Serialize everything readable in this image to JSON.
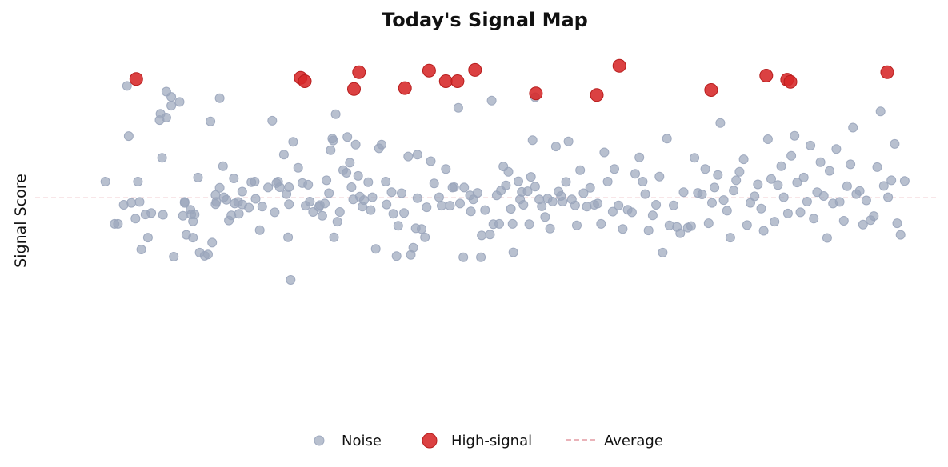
{
  "chart_data": {
    "type": "scatter",
    "title": "Today's Signal Map",
    "xlabel": "",
    "ylabel": "Signal Score",
    "xlim": [
      0,
      100
    ],
    "ylim": [
      0,
      100
    ],
    "grid": false,
    "legend_position": "bottom-center",
    "legend": [
      "Noise",
      "High-signal",
      "Average"
    ],
    "colors": {
      "noise": "#9aa5bb",
      "signal": "#d62728",
      "average": "#e39aa2"
    },
    "average": 56.8,
    "series": [
      {
        "name": "Noise",
        "points": [
          [
            4.0,
            62.0
          ],
          [
            5.1,
            48.5
          ],
          [
            5.5,
            48.5
          ],
          [
            6.2,
            54.6
          ],
          [
            6.6,
            92.5
          ],
          [
            6.8,
            76.5
          ],
          [
            7.1,
            55.2
          ],
          [
            7.6,
            50.2
          ],
          [
            7.9,
            62.0
          ],
          [
            8.1,
            55.5
          ],
          [
            8.3,
            40.3
          ],
          [
            8.8,
            51.5
          ],
          [
            9.1,
            44.1
          ],
          [
            9.5,
            52.0
          ],
          [
            10.5,
            81.6
          ],
          [
            10.6,
            83.6
          ],
          [
            10.8,
            69.6
          ],
          [
            10.9,
            51.4
          ],
          [
            11.3,
            90.7
          ],
          [
            11.3,
            82.4
          ],
          [
            11.9,
            89.0
          ],
          [
            11.9,
            86.2
          ],
          [
            12.2,
            38.0
          ],
          [
            12.9,
            87.4
          ],
          [
            13.3,
            51.1
          ],
          [
            13.5,
            55.5
          ],
          [
            13.5,
            55.2
          ],
          [
            13.7,
            45.0
          ],
          [
            14.2,
            53.0
          ],
          [
            14.3,
            51.5
          ],
          [
            14.5,
            44.1
          ],
          [
            14.5,
            49.3
          ],
          [
            14.7,
            51.5
          ],
          [
            15.1,
            63.3
          ],
          [
            15.3,
            39.3
          ],
          [
            15.9,
            38.3
          ],
          [
            16.3,
            38.7
          ],
          [
            16.6,
            81.2
          ],
          [
            16.8,
            42.5
          ],
          [
            17.2,
            54.8
          ],
          [
            17.2,
            57.7
          ],
          [
            17.3,
            55.5
          ],
          [
            17.7,
            88.6
          ],
          [
            17.7,
            60.0
          ],
          [
            18.1,
            66.9
          ],
          [
            18.2,
            57.0
          ],
          [
            18.5,
            56.2
          ],
          [
            18.8,
            49.6
          ],
          [
            19.1,
            51.2
          ],
          [
            19.4,
            63.0
          ],
          [
            19.5,
            55.0
          ],
          [
            19.9,
            55.5
          ],
          [
            20.0,
            51.7
          ],
          [
            20.4,
            54.7
          ],
          [
            20.4,
            58.8
          ],
          [
            21.2,
            53.7
          ],
          [
            21.5,
            61.8
          ],
          [
            21.9,
            62.0
          ],
          [
            22.0,
            56.5
          ],
          [
            22.5,
            46.5
          ],
          [
            22.8,
            54.0
          ],
          [
            23.5,
            60.1
          ],
          [
            24.0,
            81.4
          ],
          [
            24.3,
            52.2
          ],
          [
            24.5,
            61.5
          ],
          [
            24.7,
            62.0
          ],
          [
            24.9,
            60.2
          ],
          [
            25.4,
            70.6
          ],
          [
            26.0,
            60.2
          ],
          [
            25.7,
            58.0
          ],
          [
            25.9,
            44.2
          ],
          [
            26.0,
            54.8
          ],
          [
            26.2,
            30.6
          ],
          [
            26.5,
            74.7
          ],
          [
            27.1,
            66.4
          ],
          [
            27.6,
            61.5
          ],
          [
            28.0,
            54.3
          ],
          [
            28.3,
            61.0
          ],
          [
            28.5,
            55.6
          ],
          [
            28.9,
            52.3
          ],
          [
            29.6,
            53.9
          ],
          [
            29.7,
            54.5
          ],
          [
            30.0,
            51.1
          ],
          [
            30.3,
            55.0
          ],
          [
            30.5,
            62.4
          ],
          [
            30.8,
            58.3
          ],
          [
            31.0,
            72.0
          ],
          [
            31.2,
            75.7
          ],
          [
            31.3,
            75.1
          ],
          [
            31.4,
            44.2
          ],
          [
            31.6,
            83.5
          ],
          [
            31.8,
            49.2
          ],
          [
            32.1,
            52.3
          ],
          [
            32.5,
            65.6
          ],
          [
            32.9,
            64.8
          ],
          [
            33.0,
            76.2
          ],
          [
            33.3,
            68.0
          ],
          [
            33.5,
            60.2
          ],
          [
            33.7,
            56.3
          ],
          [
            34.0,
            73.8
          ],
          [
            34.3,
            63.8
          ],
          [
            34.5,
            57.2
          ],
          [
            34.8,
            54.0
          ],
          [
            35.0,
            56.1
          ],
          [
            35.5,
            61.8
          ],
          [
            35.8,
            52.9
          ],
          [
            36.0,
            57.0
          ],
          [
            36.4,
            40.5
          ],
          [
            36.8,
            72.6
          ],
          [
            37.1,
            73.8
          ],
          [
            37.6,
            62.0
          ],
          [
            37.7,
            54.7
          ],
          [
            38.3,
            58.6
          ],
          [
            38.5,
            51.7
          ],
          [
            38.9,
            38.2
          ],
          [
            39.1,
            47.9
          ],
          [
            39.5,
            58.3
          ],
          [
            39.8,
            52.0
          ],
          [
            40.3,
            70.0
          ],
          [
            40.6,
            38.6
          ],
          [
            40.9,
            40.9
          ],
          [
            41.2,
            47.1
          ],
          [
            41.4,
            70.6
          ],
          [
            41.4,
            56.7
          ],
          [
            41.9,
            46.9
          ],
          [
            42.3,
            44.2
          ],
          [
            42.5,
            53.8
          ],
          [
            43.0,
            68.5
          ],
          [
            43.4,
            61.4
          ],
          [
            44.0,
            57.0
          ],
          [
            44.3,
            54.3
          ],
          [
            44.8,
            66.0
          ],
          [
            45.3,
            54.3
          ],
          [
            45.6,
            60.1
          ],
          [
            45.8,
            60.2
          ],
          [
            46.3,
            85.5
          ],
          [
            46.5,
            55.0
          ],
          [
            46.9,
            37.8
          ],
          [
            47.0,
            60.1
          ],
          [
            47.7,
            57.6
          ],
          [
            47.8,
            52.5
          ],
          [
            48.1,
            56.3
          ],
          [
            48.6,
            58.4
          ],
          [
            49.0,
            37.8
          ],
          [
            49.1,
            44.8
          ],
          [
            49.5,
            52.9
          ],
          [
            50.1,
            45.1
          ],
          [
            50.3,
            87.8
          ],
          [
            50.5,
            48.4
          ],
          [
            50.9,
            57.6
          ],
          [
            51.2,
            48.5
          ],
          [
            51.4,
            59.1
          ],
          [
            51.7,
            66.8
          ],
          [
            52.0,
            60.8
          ],
          [
            52.3,
            65.1
          ],
          [
            52.6,
            53.3
          ],
          [
            52.8,
            48.5
          ],
          [
            52.9,
            39.4
          ],
          [
            53.5,
            62.1
          ],
          [
            53.7,
            56.3
          ],
          [
            53.9,
            58.7
          ],
          [
            54.1,
            54.6
          ],
          [
            54.6,
            58.9
          ],
          [
            54.8,
            48.4
          ],
          [
            55.0,
            63.5
          ],
          [
            55.2,
            75.2
          ],
          [
            55.5,
            88.9
          ],
          [
            55.5,
            60.4
          ],
          [
            56.0,
            56.3
          ],
          [
            56.3,
            54.1
          ],
          [
            56.7,
            50.7
          ],
          [
            57.0,
            56.6
          ],
          [
            57.3,
            47.0
          ],
          [
            57.6,
            55.6
          ],
          [
            58.0,
            73.2
          ],
          [
            58.3,
            58.8
          ],
          [
            58.6,
            57.4
          ],
          [
            58.8,
            55.6
          ],
          [
            59.2,
            61.9
          ],
          [
            59.5,
            74.8
          ],
          [
            59.9,
            56.3
          ],
          [
            60.3,
            54.4
          ],
          [
            60.5,
            48.0
          ],
          [
            60.9,
            65.6
          ],
          [
            61.3,
            58.3
          ],
          [
            61.7,
            54.0
          ],
          [
            62.1,
            60.0
          ],
          [
            62.6,
            54.6
          ],
          [
            63.0,
            55.0
          ],
          [
            63.4,
            48.5
          ],
          [
            63.8,
            71.3
          ],
          [
            64.2,
            62.0
          ],
          [
            64.8,
            52.4
          ],
          [
            65.0,
            66.0
          ],
          [
            65.5,
            54.4
          ],
          [
            66.0,
            46.9
          ],
          [
            66.6,
            53.0
          ],
          [
            67.1,
            52.2
          ],
          [
            67.5,
            64.5
          ],
          [
            68.0,
            69.7
          ],
          [
            68.4,
            62.0
          ],
          [
            68.7,
            58.0
          ],
          [
            69.1,
            46.4
          ],
          [
            69.6,
            51.2
          ],
          [
            70.0,
            54.6
          ],
          [
            70.4,
            63.6
          ],
          [
            70.8,
            39.3
          ],
          [
            71.3,
            75.7
          ],
          [
            71.6,
            48.0
          ],
          [
            72.1,
            54.4
          ],
          [
            72.5,
            47.5
          ],
          [
            72.9,
            45.5
          ],
          [
            73.3,
            58.6
          ],
          [
            73.8,
            47.3
          ],
          [
            74.2,
            47.8
          ],
          [
            74.6,
            69.6
          ],
          [
            75.0,
            58.4
          ],
          [
            75.5,
            57.9
          ],
          [
            75.9,
            66.0
          ],
          [
            76.3,
            48.7
          ],
          [
            76.7,
            55.2
          ],
          [
            77.0,
            60.1
          ],
          [
            77.4,
            64.1
          ],
          [
            77.7,
            80.7
          ],
          [
            78.1,
            56.1
          ],
          [
            78.5,
            52.7
          ],
          [
            78.9,
            44.1
          ],
          [
            79.3,
            59.1
          ],
          [
            79.6,
            62.4
          ],
          [
            80.0,
            65.1
          ],
          [
            80.5,
            69.1
          ],
          [
            80.9,
            48.1
          ],
          [
            81.3,
            55.2
          ],
          [
            81.8,
            57.3
          ],
          [
            82.2,
            61.1
          ],
          [
            82.6,
            53.4
          ],
          [
            82.9,
            46.3
          ],
          [
            83.4,
            75.5
          ],
          [
            83.8,
            62.8
          ],
          [
            84.2,
            49.2
          ],
          [
            84.6,
            60.9
          ],
          [
            85.0,
            66.9
          ],
          [
            85.3,
            57.0
          ],
          [
            85.8,
            51.8
          ],
          [
            86.2,
            70.2
          ],
          [
            86.6,
            76.6
          ],
          [
            86.9,
            61.7
          ],
          [
            87.3,
            52.2
          ],
          [
            87.7,
            63.3
          ],
          [
            88.1,
            55.6
          ],
          [
            88.5,
            73.5
          ],
          [
            88.9,
            50.2
          ],
          [
            89.3,
            58.6
          ],
          [
            89.7,
            68.2
          ],
          [
            90.1,
            57.4
          ],
          [
            90.5,
            44.0
          ],
          [
            90.8,
            65.4
          ],
          [
            91.2,
            55.0
          ],
          [
            91.6,
            72.4
          ],
          [
            92.0,
            55.5
          ],
          [
            92.5,
            49.5
          ],
          [
            92.9,
            60.5
          ],
          [
            93.3,
            67.5
          ],
          [
            93.6,
            79.2
          ],
          [
            94.0,
            58.0
          ],
          [
            94.4,
            59.0
          ],
          [
            94.8,
            48.3
          ],
          [
            95.2,
            56.0
          ],
          [
            95.7,
            49.7
          ],
          [
            96.1,
            51.0
          ],
          [
            96.5,
            66.6
          ],
          [
            96.9,
            84.4
          ],
          [
            97.3,
            60.6
          ],
          [
            97.8,
            57.0
          ],
          [
            98.2,
            62.4
          ],
          [
            98.6,
            74.0
          ],
          [
            98.9,
            48.7
          ],
          [
            99.3,
            45.0
          ],
          [
            99.8,
            62.2
          ]
        ]
      },
      {
        "name": "High-signal",
        "points": [
          [
            7.7,
            94.7
          ],
          [
            27.4,
            95.1
          ],
          [
            27.9,
            94.0
          ],
          [
            33.8,
            91.5
          ],
          [
            34.4,
            96.9
          ],
          [
            39.9,
            91.8
          ],
          [
            42.8,
            97.4
          ],
          [
            44.8,
            94.0
          ],
          [
            46.2,
            94.0
          ],
          [
            48.3,
            97.6
          ],
          [
            55.6,
            90.1
          ],
          [
            62.9,
            89.6
          ],
          [
            65.6,
            98.9
          ],
          [
            76.6,
            91.2
          ],
          [
            83.2,
            95.8
          ],
          [
            85.7,
            94.5
          ],
          [
            86.1,
            93.8
          ],
          [
            97.7,
            96.9
          ]
        ]
      }
    ]
  }
}
